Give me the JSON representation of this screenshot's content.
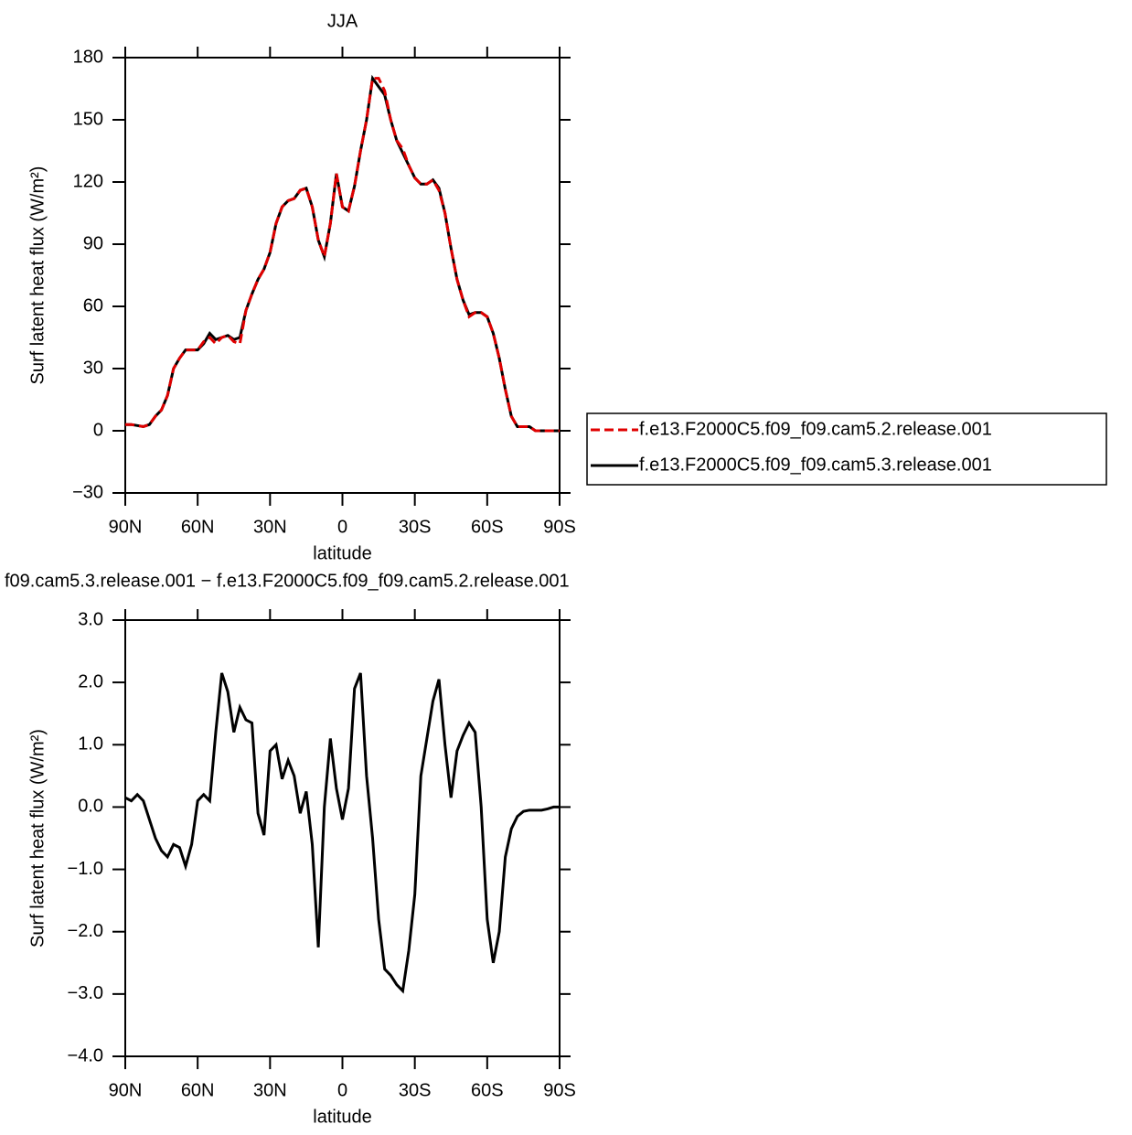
{
  "chart_data": [
    {
      "type": "line",
      "title": "JJA",
      "x_label": "latitude",
      "y_label": "Surf latent heat flux (W/m²)",
      "x": [
        90,
        87.5,
        85,
        82.5,
        80,
        77.5,
        75,
        72.5,
        70,
        67.5,
        65,
        62.5,
        60,
        57.5,
        55,
        52.5,
        50,
        47.5,
        45,
        42.5,
        40,
        37.5,
        35,
        32.5,
        30,
        27.5,
        25,
        22.5,
        20,
        17.5,
        15,
        12.5,
        10,
        7.5,
        5,
        2.5,
        0,
        -2.5,
        -5,
        -7.5,
        -10,
        -12.5,
        -15,
        -17.5,
        -20,
        -22.5,
        -25,
        -27.5,
        -30,
        -32.5,
        -35,
        -37.5,
        -40,
        -42.5,
        -45,
        -47.5,
        -50,
        -52.5,
        -55,
        -57.5,
        -60,
        -62.5,
        -65,
        -67.5,
        -70,
        -72.5,
        -75,
        -77.5,
        -80,
        -82.5,
        -85,
        -87.5,
        -90
      ],
      "xlim": [
        90,
        -90
      ],
      "xticks": [
        {
          "value": 90,
          "label": "90N"
        },
        {
          "value": 60,
          "label": "60N"
        },
        {
          "value": 30,
          "label": "30N"
        },
        0,
        {
          "value": -30,
          "label": "30S"
        },
        {
          "value": -60,
          "label": "60S"
        },
        {
          "value": -90,
          "label": "90S"
        }
      ],
      "ylim": [
        -30,
        180
      ],
      "yticks": [
        {
          "value": -30,
          "label": "−30"
        },
        0,
        30,
        60,
        90,
        120,
        150,
        180
      ],
      "legend": "right",
      "series": [
        {
          "name": "f.e13.F2000C5.f09_f09.cam5.2.release.001",
          "color": "#e00000",
          "line_style": "dashed",
          "values": [
            3,
            3,
            2.5,
            2,
            3,
            7,
            10,
            17,
            30,
            35,
            39,
            39,
            39,
            43,
            45,
            42,
            45,
            46,
            43,
            42,
            58,
            66,
            73,
            78,
            86,
            100,
            108,
            111,
            112,
            116,
            117,
            108,
            92,
            84,
            100,
            124,
            108,
            106,
            118,
            135,
            150,
            170,
            170,
            164,
            150,
            140,
            136,
            128,
            122,
            119,
            119,
            121,
            116,
            105,
            88,
            73,
            63,
            55,
            57,
            57,
            55,
            47,
            35,
            20,
            7,
            2,
            2,
            2,
            0,
            0,
            0,
            0,
            0
          ]
        },
        {
          "name": "f.e13.F2000C5.f09_f09.cam5.3.release.001",
          "color": "#000000",
          "line_style": "solid",
          "values": [
            3,
            3,
            2.5,
            2,
            3,
            7,
            10,
            17,
            30,
            35,
            39,
            39,
            39,
            42,
            47,
            44,
            45,
            46,
            44,
            45,
            58,
            66,
            73,
            78,
            86,
            100,
            108,
            111,
            112,
            116,
            117,
            108,
            92,
            84,
            100,
            124,
            108,
            106,
            118,
            135,
            150,
            170,
            166,
            162,
            150,
            140,
            134,
            128,
            122,
            119,
            119,
            121,
            117,
            105,
            88,
            73,
            63,
            56,
            57,
            57,
            55,
            47,
            35,
            20,
            7,
            2,
            2,
            2,
            0,
            0,
            0,
            0,
            0
          ]
        }
      ]
    },
    {
      "type": "line",
      "title": "f09.cam5.3.release.001 − f.e13.F2000C5.f09_f09.cam5.2.release.001",
      "x_label": "latitude",
      "y_label": "Surf latent heat flux (W/m²)",
      "x": [
        90,
        87.5,
        85,
        82.5,
        80,
        77.5,
        75,
        72.5,
        70,
        67.5,
        65,
        62.5,
        60,
        57.5,
        55,
        52.5,
        50,
        47.5,
        45,
        42.5,
        40,
        37.5,
        35,
        32.5,
        30,
        27.5,
        25,
        22.5,
        20,
        17.5,
        15,
        12.5,
        10,
        7.5,
        5,
        2.5,
        0,
        -2.5,
        -5,
        -7.5,
        -10,
        -12.5,
        -15,
        -17.5,
        -20,
        -22.5,
        -25,
        -27.5,
        -30,
        -32.5,
        -35,
        -37.5,
        -40,
        -42.5,
        -45,
        -47.5,
        -50,
        -52.5,
        -55,
        -57.5,
        -60,
        -62.5,
        -65,
        -67.5,
        -70,
        -72.5,
        -75,
        -77.5,
        -80,
        -82.5,
        -85,
        -87.5,
        -90
      ],
      "xlim": [
        90,
        -90
      ],
      "xticks": [
        {
          "value": 90,
          "label": "90N"
        },
        {
          "value": 60,
          "label": "60N"
        },
        {
          "value": 30,
          "label": "30N"
        },
        0,
        {
          "value": -30,
          "label": "30S"
        },
        {
          "value": -60,
          "label": "60S"
        },
        {
          "value": -90,
          "label": "90S"
        }
      ],
      "ylim": [
        -4,
        3
      ],
      "yticks": [
        {
          "value": -4,
          "label": "−4.0"
        },
        {
          "value": -3,
          "label": "−3.0"
        },
        {
          "value": -2,
          "label": "−2.0"
        },
        {
          "value": -1,
          "label": "−1.0"
        },
        {
          "value": 0,
          "label": "0.0"
        },
        {
          "value": 1,
          "label": "1.0"
        },
        {
          "value": 2,
          "label": "2.0"
        },
        {
          "value": 3,
          "label": "3.0"
        }
      ],
      "series": [
        {
          "color": "#000000",
          "line_style": "solid",
          "values": [
            0.15,
            0.1,
            0.2,
            0.1,
            -0.2,
            -0.5,
            -0.7,
            -0.8,
            -0.6,
            -0.65,
            -0.95,
            -0.6,
            0.1,
            0.2,
            0.1,
            1.2,
            2.15,
            1.85,
            1.2,
            1.6,
            1.4,
            1.35,
            -0.1,
            -0.45,
            0.9,
            1.0,
            0.45,
            0.75,
            0.5,
            -0.1,
            0.25,
            -0.6,
            -2.25,
            0.0,
            1.1,
            0.3,
            -0.2,
            0.3,
            1.9,
            2.15,
            0.5,
            -0.5,
            -1.8,
            -2.6,
            -2.7,
            -2.85,
            -2.95,
            -2.3,
            -1.4,
            0.5,
            1.1,
            1.7,
            2.05,
            1.0,
            0.15,
            0.9,
            1.15,
            1.35,
            1.2,
            0.0,
            -1.8,
            -2.5,
            -2.0,
            -0.8,
            -0.35,
            -0.15,
            -0.07,
            -0.05,
            -0.05,
            -0.05,
            -0.03,
            0.0,
            0.0
          ]
        }
      ]
    }
  ]
}
